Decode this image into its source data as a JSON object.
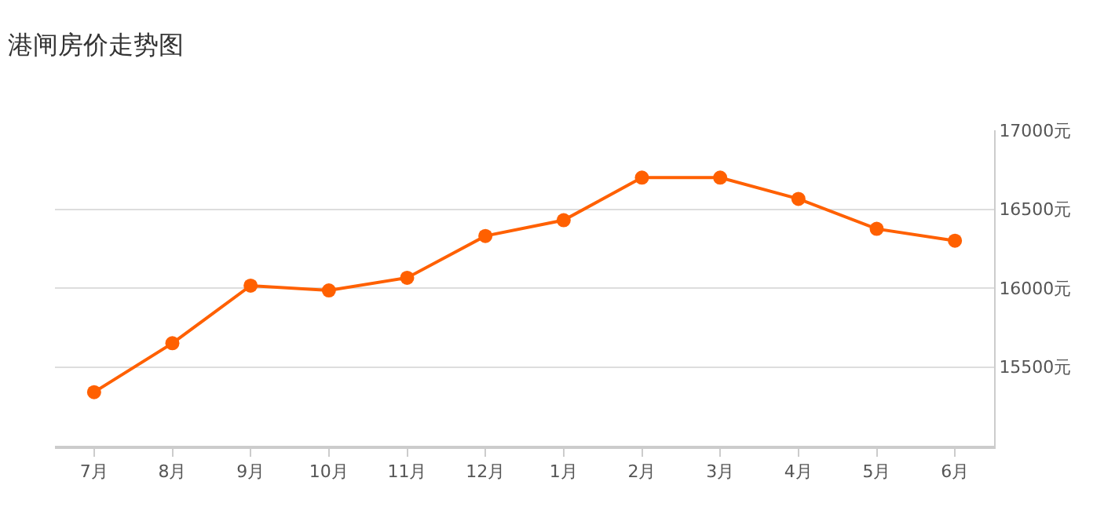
{
  "chart_data": {
    "type": "line",
    "title": "港闸房价走势图",
    "categories": [
      "7月",
      "8月",
      "9月",
      "10月",
      "11月",
      "12月",
      "1月",
      "2月",
      "3月",
      "4月",
      "5月",
      "6月"
    ],
    "series": [
      {
        "color": "#ff6000",
        "values": [
          15340,
          15650,
          16015,
          15985,
          16065,
          16330,
          16430,
          16700,
          16700,
          16565,
          16375,
          16300
        ]
      }
    ],
    "ylim": [
      15000,
      17000
    ],
    "yticks": [
      {
        "value": 15500,
        "label": "15500元"
      },
      {
        "value": 16000,
        "label": "16000元"
      },
      {
        "value": 16500,
        "label": "16500元"
      },
      {
        "value": 17000,
        "label": "17000元"
      }
    ],
    "grid": "y",
    "marker": "circle",
    "line_style": "solid",
    "legend": false
  }
}
